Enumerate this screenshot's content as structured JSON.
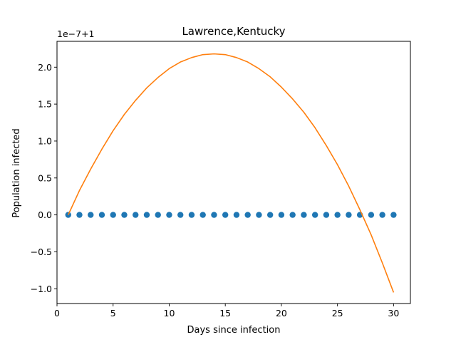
{
  "chart_data": {
    "type": "scatter",
    "title": "Lawrence,Kentucky",
    "xlabel": "Days since infection",
    "ylabel": "Population infected",
    "offset_label": "1e−7+1",
    "xlim": [
      0,
      31.5
    ],
    "ylim": [
      -1.2,
      2.35
    ],
    "x_ticks": [
      0,
      5,
      10,
      15,
      20,
      25,
      30
    ],
    "x_tick_labels": [
      "0",
      "5",
      "10",
      "15",
      "20",
      "25",
      "30"
    ],
    "y_ticks": [
      -1.0,
      -0.5,
      0.0,
      0.5,
      1.0,
      1.5,
      2.0
    ],
    "y_tick_labels": [
      "−1.0",
      "−0.5",
      "0.0",
      "0.5",
      "1.0",
      "1.5",
      "2.0"
    ],
    "grid": false,
    "series": [
      {
        "kind": "scatter",
        "color": "#1f77b4",
        "x": [
          1,
          2,
          3,
          4,
          5,
          6,
          7,
          8,
          9,
          10,
          11,
          12,
          13,
          14,
          15,
          16,
          17,
          18,
          19,
          20,
          21,
          22,
          23,
          24,
          25,
          26,
          27,
          28,
          29,
          30
        ],
        "y": [
          0,
          0,
          0,
          0,
          0,
          0,
          0,
          0,
          0,
          0,
          0,
          0,
          0,
          0,
          0,
          0,
          0,
          0,
          0,
          0,
          0,
          0,
          0,
          0,
          0,
          0,
          0,
          0,
          0,
          0
        ]
      },
      {
        "kind": "line",
        "color": "#ff7f0e",
        "x": [
          1,
          2,
          3,
          4,
          5,
          6,
          7,
          8,
          9,
          10,
          11,
          12,
          13,
          14,
          15,
          16,
          17,
          18,
          19,
          20,
          21,
          22,
          23,
          24,
          25,
          26,
          27,
          28,
          29,
          30
        ],
        "y": [
          0.0,
          0.33,
          0.62,
          0.89,
          1.14,
          1.36,
          1.55,
          1.72,
          1.86,
          1.98,
          2.07,
          2.13,
          2.17,
          2.18,
          2.17,
          2.13,
          2.07,
          1.98,
          1.87,
          1.73,
          1.57,
          1.39,
          1.18,
          0.94,
          0.68,
          0.39,
          0.07,
          -0.27,
          -0.65,
          -1.05
        ]
      }
    ]
  }
}
